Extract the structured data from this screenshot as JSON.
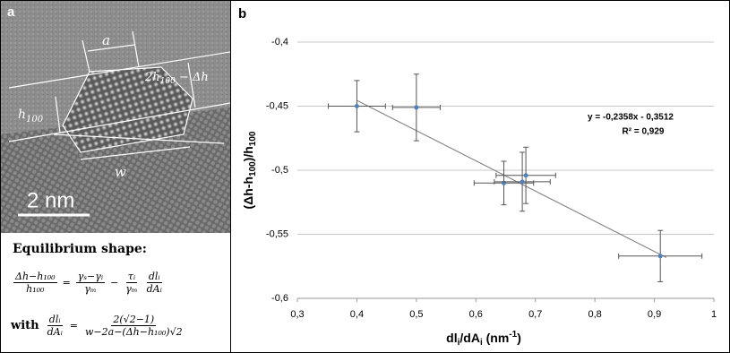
{
  "panel_a": {
    "label": "a",
    "scale_bar": "2 nm",
    "annotations": {
      "width_a": "a",
      "height_left": [
        "h",
        "100"
      ],
      "height_right": [
        "2",
        "h",
        "100",
        " − Δ",
        "h"
      ],
      "width_w": "w"
    },
    "equation_title": "Equilibrium shape:",
    "equation_1": {
      "lhs": {
        "num": "Δh−h₁₀₀",
        "den": "h₁₀₀"
      },
      "eq": "=",
      "t1": {
        "num": "γₛ−γᵢ",
        "den": "γₘ"
      },
      "minus": "−",
      "t2": {
        "num": "τᵢ",
        "den": "γₘ"
      },
      "t3": {
        "num": "dlᵢ",
        "den": "dAᵢ"
      }
    },
    "equation_2": {
      "prefix": "with",
      "lhs": {
        "num": "dlᵢ",
        "den": "dAᵢ"
      },
      "eq": "=",
      "rhs": {
        "num": "2(√2−1)",
        "den": "w−2a−(Δh−h₁₀₀)√2"
      }
    }
  },
  "chart_data": {
    "type": "scatter",
    "panel_label": "b",
    "y_label": [
      "(Δh-h",
      "100",
      ")/h",
      "100"
    ],
    "x_label": [
      "dl",
      "i",
      "/dA",
      "i",
      " (nm",
      "-1",
      ")"
    ],
    "xlim": [
      0.3,
      1
    ],
    "ylim": [
      -0.6,
      -0.4
    ],
    "xticks": [
      {
        "value": 0.3,
        "label": "0,3"
      },
      {
        "value": 0.4,
        "label": "0,4"
      },
      {
        "value": 0.5,
        "label": "0,5"
      },
      {
        "value": 0.6,
        "label": "0,6"
      },
      {
        "value": 0.7,
        "label": "0,7"
      },
      {
        "value": 0.8,
        "label": "0,8"
      },
      {
        "value": 0.9,
        "label": "0,9"
      },
      1
    ],
    "yticks": [
      {
        "value": -0.4,
        "label": "-0,4"
      },
      {
        "value": -0.45,
        "label": "-0,45"
      },
      {
        "value": -0.5,
        "label": "-0,5"
      },
      {
        "value": -0.55,
        "label": "-0,55"
      },
      {
        "value": -0.6,
        "label": "-0,6"
      }
    ],
    "grid": true,
    "series": [
      {
        "color": "#4f81bd",
        "error_color": "#555555",
        "x": [
          0.4,
          0.5,
          0.647,
          0.678,
          0.684,
          0.91
        ],
        "values": [
          -0.45,
          -0.451,
          -0.51,
          -0.509,
          -0.504,
          -0.567
        ],
        "x_errors": [
          0.048,
          0.04,
          0.05,
          0.047,
          0.05,
          0.07
        ],
        "y_errors": [
          0.02,
          0.026,
          0.017,
          0.023,
          0.022,
          0.02
        ]
      }
    ],
    "trendline": {
      "slope": -0.2358,
      "intercept": -0.3512,
      "x": [
        0.4,
        0.92
      ],
      "color": "#777777",
      "equation": "y = -0,2358x - 0,3512",
      "r_squared": "R² = 0,929"
    }
  }
}
